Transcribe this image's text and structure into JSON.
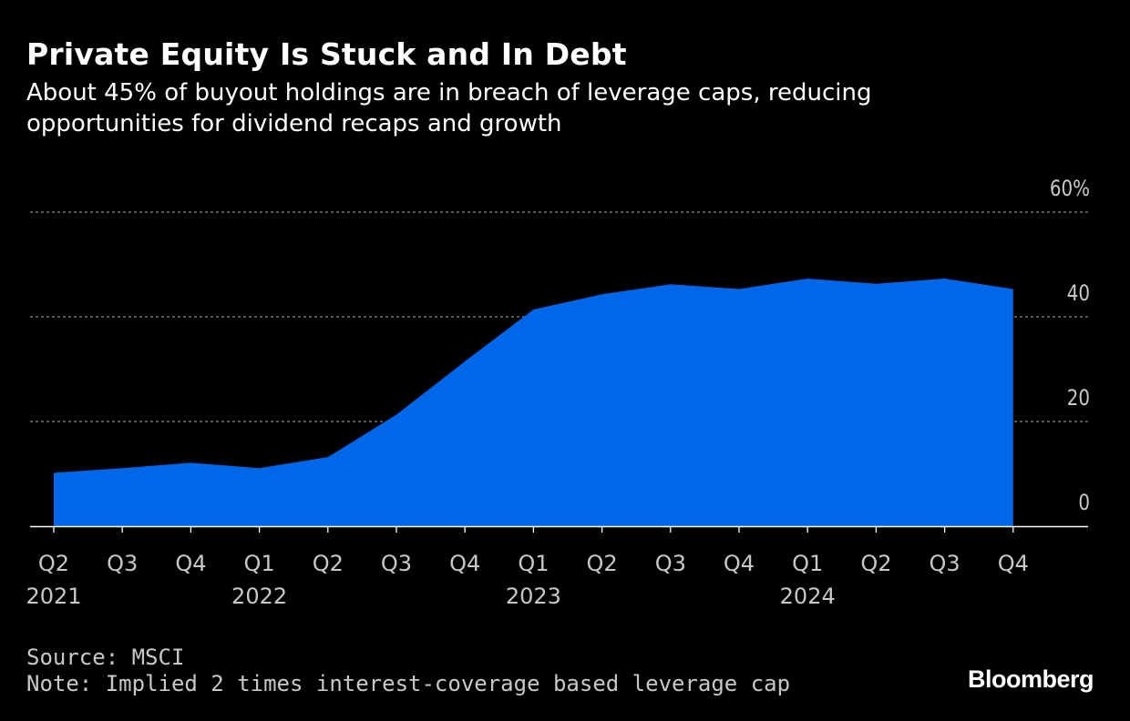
{
  "header": {
    "title": "Private Equity Is Stuck and In Debt",
    "subtitle": "About 45% of buyout holdings are in breach of leverage caps, reducing opportunities for dividend recaps and growth"
  },
  "footer": {
    "source": "Source: MSCI",
    "note": "Note: Implied 2 times interest-coverage based leverage cap",
    "brand": "Bloomberg"
  },
  "colors": {
    "background": "#000000",
    "area_fill": "#0068e8",
    "gridline": "#8c8c8c",
    "text": "#ffffff",
    "muted_text": "#c8c8c8"
  },
  "chart_data": {
    "type": "area",
    "categories": [
      "Q2",
      "Q3",
      "Q4",
      "Q1",
      "Q2",
      "Q3",
      "Q4",
      "Q1",
      "Q2",
      "Q3",
      "Q4",
      "Q1",
      "Q2",
      "Q3",
      "Q4"
    ],
    "year_labels": [
      {
        "index": 0,
        "label": "2021"
      },
      {
        "index": 3,
        "label": "2022"
      },
      {
        "index": 7,
        "label": "2023"
      },
      {
        "index": 11,
        "label": "2024"
      }
    ],
    "series": [
      {
        "values": [
          10.2,
          11.1,
          12.1,
          11.1,
          13.2,
          21.3,
          31.5,
          41.4,
          44.3,
          46.2,
          45.3,
          47.3,
          46.3,
          47.3,
          45.3
        ]
      }
    ],
    "y_ticks": [
      {
        "value": 0,
        "label": "0"
      },
      {
        "value": 20,
        "label": "20"
      },
      {
        "value": 40,
        "label": "40"
      },
      {
        "value": 60,
        "label": "60%"
      }
    ],
    "ylim": [
      0,
      60
    ],
    "grid": true,
    "y_axis_side": "right",
    "xlabel": "",
    "ylabel": ""
  }
}
